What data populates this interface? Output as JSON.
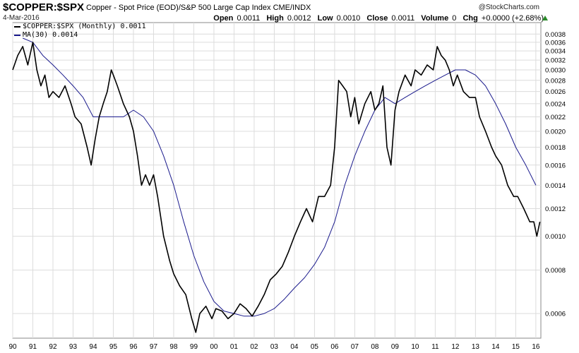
{
  "header": {
    "symbol": "$COPPER:$SPX",
    "description": "Copper - Spot Price (EOD)/S&P 500 Large Cap Index",
    "exchange": "CME/INDX",
    "date": "4-Mar-2016",
    "open_label": "Open",
    "open_value": "0.0011",
    "high_label": "High",
    "high_value": "0.0012",
    "low_label": "Low",
    "low_value": "0.0010",
    "close_label": "Close",
    "close_value": "0.0011",
    "volume_label": "Volume",
    "volume_value": "0",
    "chg_label": "Chg",
    "chg_value": "+0.0000 (+2.68%)",
    "brand": "@StockCharts.com"
  },
  "legend": {
    "series1": "$COPPER:$SPX (Monthly) 0.0011",
    "series2": "MA(30) 0.0014"
  },
  "colors": {
    "price": "#000000",
    "ma": "#1a1a8c",
    "grid": "#dcdcdc",
    "up": "#2a8a2a"
  },
  "chart_data": {
    "type": "line",
    "title": "$COPPER:$SPX",
    "xlabel": "",
    "ylabel": "",
    "y_scale": "log",
    "ylim": [
      0.00051,
      0.0041
    ],
    "x_range": [
      1990.0,
      2016.25
    ],
    "x_ticks": [
      "90",
      "91",
      "92",
      "93",
      "94",
      "95",
      "96",
      "97",
      "98",
      "99",
      "00",
      "01",
      "02",
      "03",
      "04",
      "05",
      "06",
      "07",
      "08",
      "09",
      "10",
      "11",
      "12",
      "13",
      "14",
      "15",
      "16"
    ],
    "y_ticks": [
      "0.0006",
      "0.0008",
      "0.0010",
      "0.0012",
      "0.0014",
      "0.0016",
      "0.0018",
      "0.0020",
      "0.0022",
      "0.0024",
      "0.0026",
      "0.0028",
      "0.0030",
      "0.0032",
      "0.0034",
      "0.0036",
      "0.0038"
    ],
    "series": [
      {
        "name": "$COPPER:$SPX (Monthly)",
        "x": [
          1990.0,
          1990.25,
          1990.5,
          1990.75,
          1991.0,
          1991.2,
          1991.4,
          1991.6,
          1991.8,
          1992.0,
          1992.3,
          1992.6,
          1992.9,
          1993.1,
          1993.4,
          1993.7,
          1993.9,
          1994.1,
          1994.3,
          1994.5,
          1994.7,
          1994.9,
          1995.0,
          1995.2,
          1995.5,
          1995.8,
          1996.0,
          1996.2,
          1996.4,
          1996.6,
          1996.8,
          1997.0,
          1997.2,
          1997.5,
          1997.8,
          1998.0,
          1998.3,
          1998.6,
          1998.9,
          1999.1,
          1999.3,
          1999.6,
          1999.9,
          2000.1,
          2000.4,
          2000.7,
          2001.0,
          2001.3,
          2001.6,
          2001.9,
          2002.2,
          2002.5,
          2002.8,
          2003.1,
          2003.4,
          2003.7,
          2004.0,
          2004.3,
          2004.6,
          2004.9,
          2005.2,
          2005.5,
          2005.8,
          2006.0,
          2006.2,
          2006.4,
          2006.6,
          2006.8,
          2007.0,
          2007.2,
          2007.5,
          2007.8,
          2008.0,
          2008.2,
          2008.4,
          2008.6,
          2008.8,
          2009.0,
          2009.2,
          2009.5,
          2009.8,
          2010.0,
          2010.3,
          2010.6,
          2010.9,
          2011.1,
          2011.3,
          2011.5,
          2011.7,
          2011.9,
          2012.1,
          2012.4,
          2012.7,
          2013.0,
          2013.2,
          2013.5,
          2013.8,
          2014.0,
          2014.3,
          2014.6,
          2014.9,
          2015.1,
          2015.4,
          2015.7,
          2015.9,
          2016.05,
          2016.2
        ],
        "values": [
          0.003,
          0.0033,
          0.0035,
          0.0031,
          0.0036,
          0.003,
          0.0027,
          0.0029,
          0.0025,
          0.0026,
          0.0025,
          0.0027,
          0.0024,
          0.0022,
          0.0021,
          0.0018,
          0.0016,
          0.0019,
          0.0022,
          0.0024,
          0.0026,
          0.003,
          0.0029,
          0.0027,
          0.0024,
          0.0022,
          0.002,
          0.0017,
          0.0014,
          0.0015,
          0.0014,
          0.0015,
          0.0013,
          0.001,
          0.00085,
          0.00078,
          0.00072,
          0.00068,
          0.00058,
          0.00053,
          0.0006,
          0.00063,
          0.00058,
          0.00062,
          0.00061,
          0.00058,
          0.0006,
          0.00064,
          0.00062,
          0.00059,
          0.00063,
          0.00068,
          0.00075,
          0.00078,
          0.00082,
          0.0009,
          0.001,
          0.0011,
          0.0012,
          0.0011,
          0.0013,
          0.0013,
          0.0014,
          0.0018,
          0.0028,
          0.0027,
          0.0026,
          0.0022,
          0.0025,
          0.0021,
          0.0024,
          0.0026,
          0.0023,
          0.0024,
          0.0027,
          0.0018,
          0.0016,
          0.0023,
          0.0026,
          0.0029,
          0.0027,
          0.003,
          0.0029,
          0.0031,
          0.003,
          0.0035,
          0.0033,
          0.0032,
          0.003,
          0.0027,
          0.0029,
          0.0026,
          0.0025,
          0.0025,
          0.0022,
          0.002,
          0.0018,
          0.0017,
          0.0016,
          0.0014,
          0.0013,
          0.0013,
          0.0012,
          0.0011,
          0.0011,
          0.001,
          0.0011
        ],
        "color": "#000000"
      },
      {
        "name": "MA(30)",
        "x": [
          1990.5,
          1991.0,
          1991.5,
          1992.0,
          1992.5,
          1993.0,
          1993.5,
          1994.0,
          1994.5,
          1995.0,
          1995.5,
          1996.0,
          1996.5,
          1997.0,
          1997.5,
          1998.0,
          1998.5,
          1999.0,
          1999.5,
          2000.0,
          2000.5,
          2001.0,
          2001.5,
          2002.0,
          2002.5,
          2003.0,
          2003.5,
          2004.0,
          2004.5,
          2005.0,
          2005.5,
          2006.0,
          2006.5,
          2007.0,
          2007.5,
          2008.0,
          2008.5,
          2009.0,
          2009.5,
          2010.0,
          2010.5,
          2011.0,
          2011.5,
          2012.0,
          2012.5,
          2013.0,
          2013.5,
          2014.0,
          2014.5,
          2015.0,
          2015.5,
          2016.0
        ],
        "values": [
          0.0037,
          0.0036,
          0.0033,
          0.0031,
          0.0029,
          0.0027,
          0.0025,
          0.0022,
          0.0022,
          0.0022,
          0.0022,
          0.0023,
          0.0022,
          0.002,
          0.0017,
          0.0014,
          0.0011,
          0.00088,
          0.00074,
          0.00065,
          0.00061,
          0.0006,
          0.00059,
          0.00059,
          0.0006,
          0.00062,
          0.00066,
          0.00071,
          0.00076,
          0.00083,
          0.00093,
          0.0011,
          0.0014,
          0.0017,
          0.002,
          0.0023,
          0.0025,
          0.0024,
          0.0025,
          0.0026,
          0.0027,
          0.0028,
          0.0029,
          0.003,
          0.003,
          0.0029,
          0.0027,
          0.0024,
          0.0021,
          0.0018,
          0.0016,
          0.0014
        ],
        "color": "#1a1a8c"
      }
    ]
  }
}
